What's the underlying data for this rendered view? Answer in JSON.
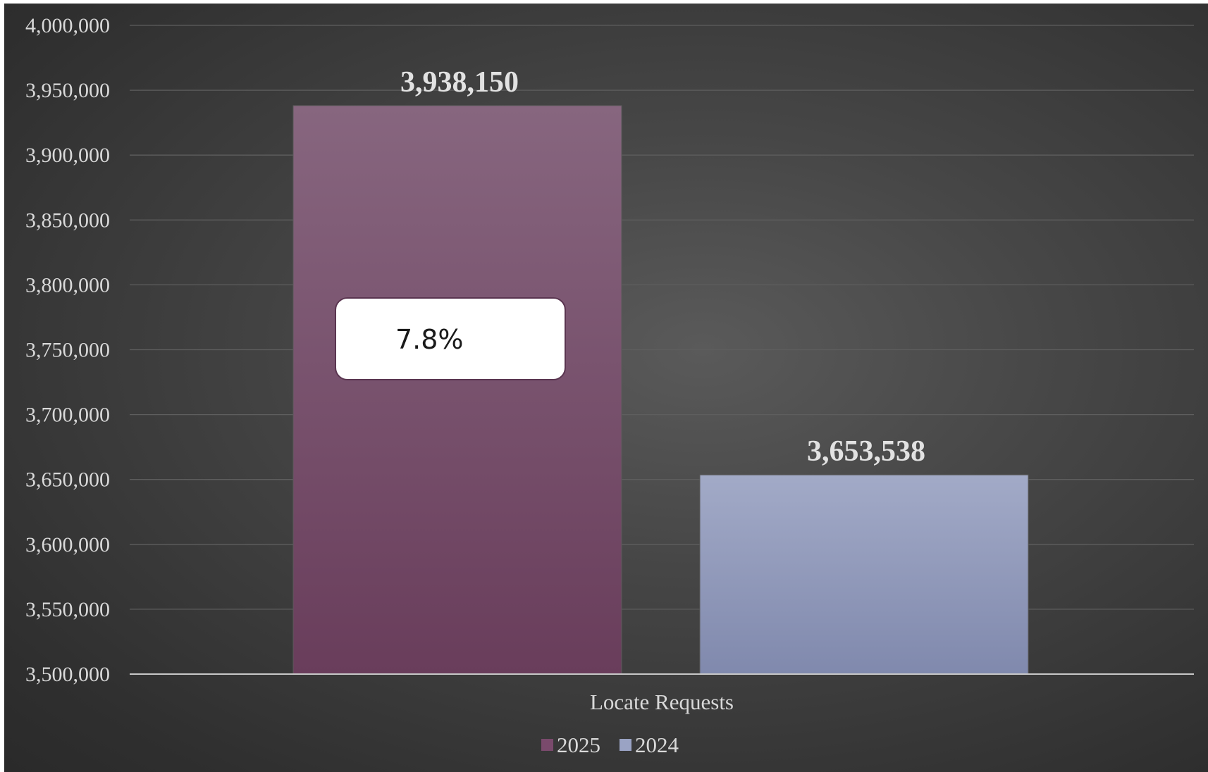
{
  "chart_data": {
    "type": "bar",
    "categories": [
      "Locate Requests"
    ],
    "series": [
      {
        "name": "2025",
        "values": [
          3938150
        ],
        "color": "#7a4a6c"
      },
      {
        "name": "2024",
        "values": [
          3653538
        ],
        "color": "#9aa3c4"
      }
    ],
    "data_labels": [
      "3,938,150",
      "3,653,538"
    ],
    "y_ticks": [
      "3,500,000",
      "3,550,000",
      "3,600,000",
      "3,650,000",
      "3,700,000",
      "3,750,000",
      "3,800,000",
      "3,850,000",
      "3,900,000",
      "3,950,000",
      "4,000,000"
    ],
    "ylim": [
      3500000,
      4000000
    ],
    "grid": true,
    "legend_position": "bottom",
    "annotation": "7.8%",
    "background_color": "#3c3c3c"
  }
}
